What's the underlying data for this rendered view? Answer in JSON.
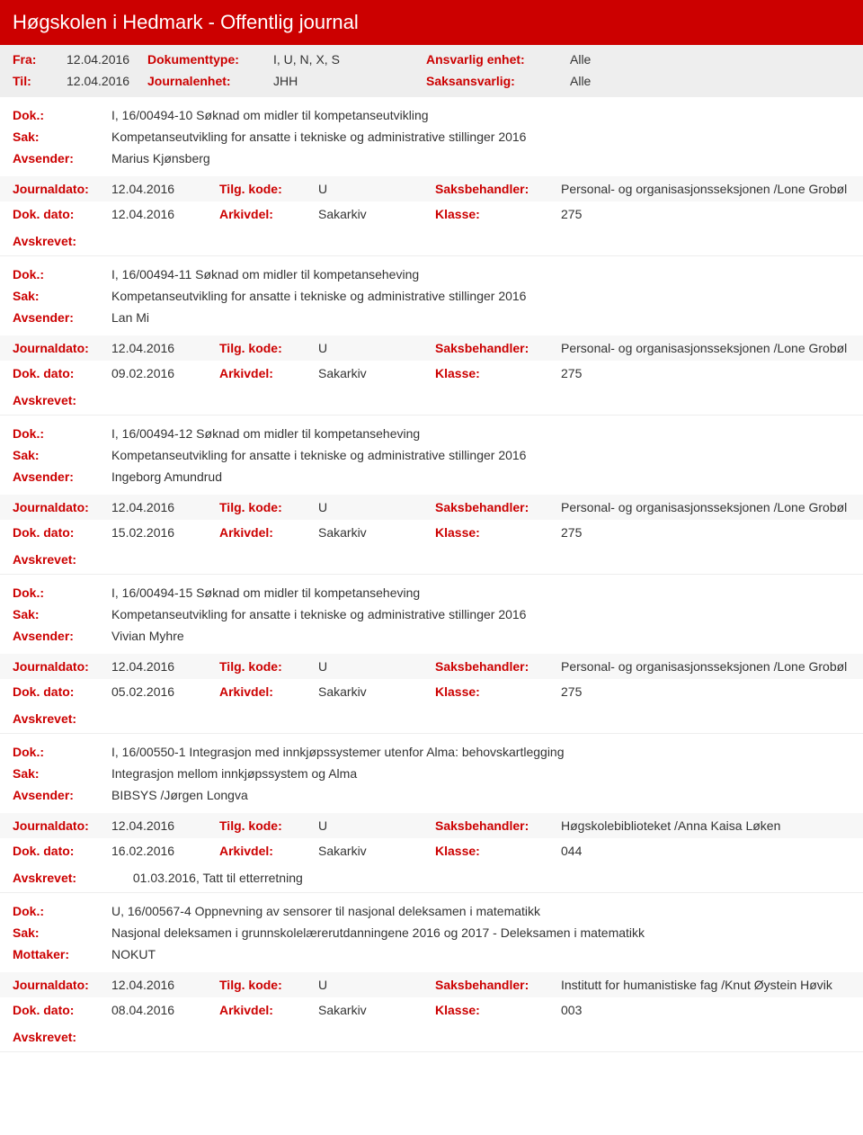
{
  "header": {
    "title": "Høgskolen i Hedmark - Offentlig journal"
  },
  "filters": {
    "fra_label": "Fra:",
    "fra_value": "12.04.2016",
    "til_label": "Til:",
    "til_value": "12.04.2016",
    "doktype_label": "Dokumenttype:",
    "doktype_value": "I, U, N, X, S",
    "journalenhet_label": "Journalenhet:",
    "journalenhet_value": "JHH",
    "ansvarlig_label": "Ansvarlig enhet:",
    "ansvarlig_value": "Alle",
    "saksansvarlig_label": "Saksansvarlig:",
    "saksansvarlig_value": "Alle"
  },
  "labels": {
    "dok": "Dok.:",
    "sak": "Sak:",
    "avsender": "Avsender:",
    "mottaker": "Mottaker:",
    "journaldato": "Journaldato:",
    "dokdato": "Dok. dato:",
    "tilgkode": "Tilg. kode:",
    "arkivdel": "Arkivdel:",
    "saksbehandler": "Saksbehandler:",
    "klasse": "Klasse:",
    "avskrevet": "Avskrevet:"
  },
  "entries": [
    {
      "dok": "I, 16/00494-10 Søknad om midler til kompetanseutvikling",
      "sak": "Kompetanseutvikling for ansatte i tekniske og administrative stillinger 2016",
      "party_label": "Avsender:",
      "party_value": "Marius Kjønsberg",
      "journaldato": "12.04.2016",
      "tilgkode": "U",
      "saksbehandler": "Personal- og organisasjonsseksjonen /Lone Grobøl",
      "dokdato": "12.04.2016",
      "arkivdel": "Sakarkiv",
      "klasse": "275",
      "avskrevet": ""
    },
    {
      "dok": "I, 16/00494-11 Søknad om midler til kompetanseheving",
      "sak": "Kompetanseutvikling for ansatte i tekniske og administrative stillinger 2016",
      "party_label": "Avsender:",
      "party_value": "Lan Mi",
      "journaldato": "12.04.2016",
      "tilgkode": "U",
      "saksbehandler": "Personal- og organisasjonsseksjonen /Lone Grobøl",
      "dokdato": "09.02.2016",
      "arkivdel": "Sakarkiv",
      "klasse": "275",
      "avskrevet": ""
    },
    {
      "dok": "I, 16/00494-12 Søknad om midler til kompetanseheving",
      "sak": "Kompetanseutvikling for ansatte i tekniske og administrative stillinger 2016",
      "party_label": "Avsender:",
      "party_value": "Ingeborg Amundrud",
      "journaldato": "12.04.2016",
      "tilgkode": "U",
      "saksbehandler": "Personal- og organisasjonsseksjonen /Lone Grobøl",
      "dokdato": "15.02.2016",
      "arkivdel": "Sakarkiv",
      "klasse": "275",
      "avskrevet": ""
    },
    {
      "dok": "I, 16/00494-15 Søknad om midler til kompetanseheving",
      "sak": "Kompetanseutvikling for ansatte i tekniske og administrative stillinger 2016",
      "party_label": "Avsender:",
      "party_value": "Vivian Myhre",
      "journaldato": "12.04.2016",
      "tilgkode": "U",
      "saksbehandler": "Personal- og organisasjonsseksjonen /Lone Grobøl",
      "dokdato": "05.02.2016",
      "arkivdel": "Sakarkiv",
      "klasse": "275",
      "avskrevet": ""
    },
    {
      "dok": "I, 16/00550-1 Integrasjon med innkjøpssystemer utenfor Alma: behovskartlegging",
      "sak": "Integrasjon mellom innkjøpssystem og Alma",
      "party_label": "Avsender:",
      "party_value": "BIBSYS /Jørgen Longva",
      "journaldato": "12.04.2016",
      "tilgkode": "U",
      "saksbehandler": "Høgskolebiblioteket /Anna Kaisa Løken",
      "dokdato": "16.02.2016",
      "arkivdel": "Sakarkiv",
      "klasse": "044",
      "avskrevet": "01.03.2016, Tatt til etterretning"
    },
    {
      "dok": "U, 16/00567-4 Oppnevning av sensorer til nasjonal deleksamen i matematikk",
      "sak": "Nasjonal deleksamen i grunnskolelærerutdanningene 2016 og 2017 - Deleksamen i matematikk",
      "party_label": "Mottaker:",
      "party_value": "NOKUT",
      "journaldato": "12.04.2016",
      "tilgkode": "U",
      "saksbehandler": "Institutt for humanistiske fag /Knut Øystein Høvik",
      "dokdato": "08.04.2016",
      "arkivdel": "Sakarkiv",
      "klasse": "003",
      "avskrevet": ""
    }
  ]
}
